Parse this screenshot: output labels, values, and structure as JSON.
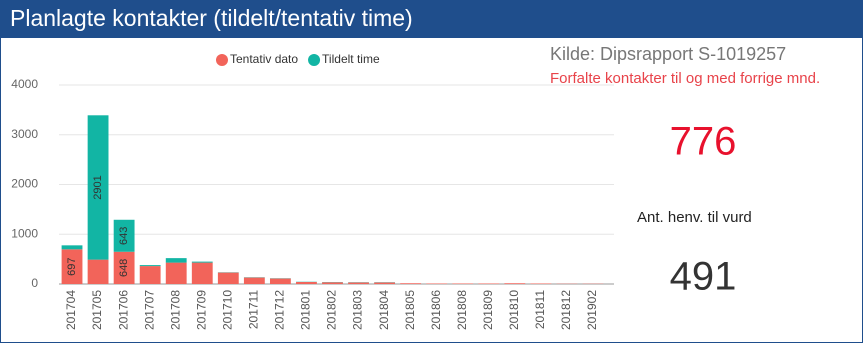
{
  "header": {
    "title": "Planlagte kontakter (tildelt/tentativ time)"
  },
  "chart_data": {
    "type": "stacked_bar",
    "categories": [
      "201704",
      "201705",
      "201706",
      "201707",
      "201708",
      "201709",
      "201710",
      "201711",
      "201712",
      "201801",
      "201802",
      "201803",
      "201804",
      "201805",
      "201806",
      "201808",
      "201809",
      "201810",
      "201811",
      "201812",
      "201902"
    ],
    "series": [
      {
        "name": "Tentativ dato",
        "color": "#f2645a",
        "values": [
          697,
          490,
          648,
          360,
          430,
          430,
          230,
          130,
          110,
          40,
          35,
          30,
          30,
          15,
          10,
          10,
          10,
          15,
          10,
          5,
          5
        ]
      },
      {
        "name": "Tildelt time",
        "color": "#12b5a4",
        "values": [
          80,
          2901,
          643,
          20,
          90,
          20,
          5,
          5,
          5,
          5,
          5,
          5,
          5,
          0,
          0,
          0,
          0,
          0,
          0,
          0,
          0
        ]
      }
    ],
    "ylim": [
      0,
      4000
    ],
    "yticks": [
      0,
      1000,
      2000,
      3000,
      4000
    ],
    "grid": true
  },
  "cards": {
    "source": "Kilde: Dipsrapport S-1019257",
    "note": "Forfalte kontakter til og med forrige mnd.",
    "overdue": 776,
    "referrals_label": "Ant. henv. til vurd",
    "referrals": 491
  }
}
